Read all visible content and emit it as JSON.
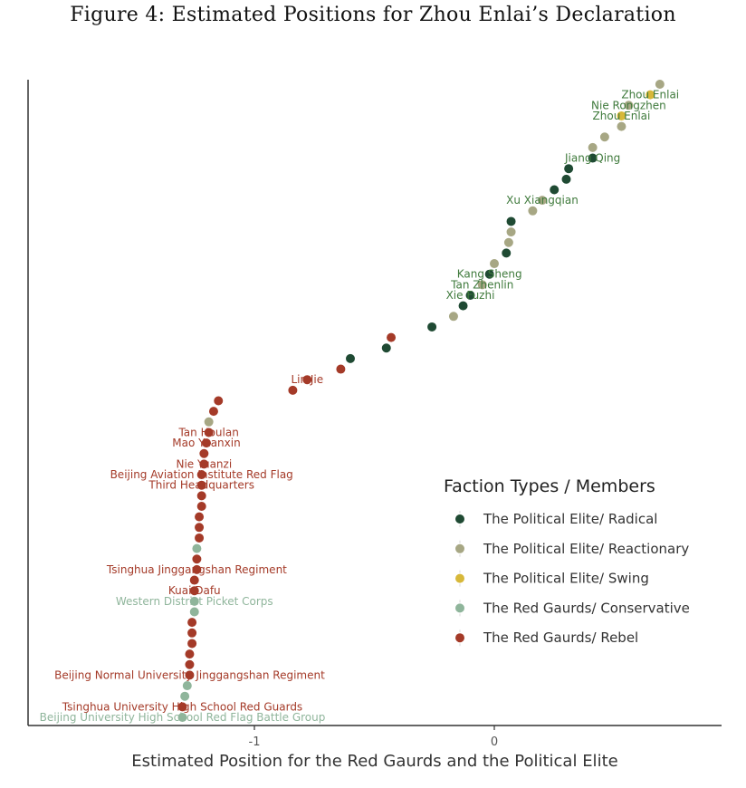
{
  "page_title": "Figure 4: Estimated Positions for Zhou Enlai’s Declaration",
  "chart_data": {
    "type": "scatter",
    "xlabel": "Estimated Position for the Red Gaurds and the Political Elite",
    "xlim": [
      -1.95,
      0.95
    ],
    "x_ticks": [
      -1,
      0
    ],
    "x_tick_labels": [
      "-1",
      "0"
    ],
    "legend": {
      "title": "Faction Types / Members",
      "placement": "right",
      "entries": [
        {
          "key": "elite_radical",
          "label": "The Political Elite/ Radical",
          "color": "#1f4a33"
        },
        {
          "key": "elite_reactionary",
          "label": "The Political Elite/ Reactionary",
          "color": "#a7a784"
        },
        {
          "key": "elite_swing",
          "label": "The Political Elite/ Swing",
          "color": "#d7b83a"
        },
        {
          "key": "rg_conservative",
          "label": "The Red Gaurds/ Conservative",
          "color": "#8fb59b"
        },
        {
          "key": "rg_rebel",
          "label": "The Red Gaurds/ Rebel",
          "color": "#a43a28"
        }
      ]
    },
    "points": [
      {
        "x": 0.69,
        "group": "elite_reactionary"
      },
      {
        "x": 0.65,
        "group": "elite_swing",
        "label": "Zhou Enlai"
      },
      {
        "x": 0.56,
        "group": "elite_reactionary",
        "label": "Nie Rongzhen"
      },
      {
        "x": 0.53,
        "group": "elite_swing",
        "label": "Zhou Enlai"
      },
      {
        "x": 0.53,
        "group": "elite_reactionary"
      },
      {
        "x": 0.46,
        "group": "elite_reactionary"
      },
      {
        "x": 0.41,
        "group": "elite_reactionary"
      },
      {
        "x": 0.41,
        "group": "elite_radical",
        "label": "Jiang Qing"
      },
      {
        "x": 0.31,
        "group": "elite_radical"
      },
      {
        "x": 0.3,
        "group": "elite_radical"
      },
      {
        "x": 0.25,
        "group": "elite_radical"
      },
      {
        "x": 0.2,
        "group": "elite_reactionary",
        "label": "Xu Xiangqian"
      },
      {
        "x": 0.16,
        "group": "elite_reactionary"
      },
      {
        "x": 0.07,
        "group": "elite_radical"
      },
      {
        "x": 0.07,
        "group": "elite_reactionary"
      },
      {
        "x": 0.06,
        "group": "elite_reactionary"
      },
      {
        "x": 0.05,
        "group": "elite_radical"
      },
      {
        "x": 0.0,
        "group": "elite_reactionary"
      },
      {
        "x": -0.02,
        "group": "elite_radical",
        "label": "Kang Sheng"
      },
      {
        "x": -0.05,
        "group": "elite_reactionary",
        "label": "Tan Zhenlin"
      },
      {
        "x": -0.1,
        "group": "elite_radical",
        "label": "Xie Fuzhi"
      },
      {
        "x": -0.13,
        "group": "elite_radical"
      },
      {
        "x": -0.17,
        "group": "elite_reactionary"
      },
      {
        "x": -0.26,
        "group": "elite_radical"
      },
      {
        "x": -0.43,
        "group": "rg_rebel"
      },
      {
        "x": -0.45,
        "group": "elite_radical"
      },
      {
        "x": -0.6,
        "group": "elite_radical"
      },
      {
        "x": -0.64,
        "group": "rg_rebel"
      },
      {
        "x": -0.78,
        "group": "rg_rebel",
        "label": "Lin Jie"
      },
      {
        "x": -0.84,
        "group": "rg_rebel"
      },
      {
        "x": -1.15,
        "group": "rg_rebel"
      },
      {
        "x": -1.17,
        "group": "rg_rebel"
      },
      {
        "x": -1.19,
        "group": "elite_reactionary"
      },
      {
        "x": -1.19,
        "group": "rg_rebel",
        "label": "Tan Houlan"
      },
      {
        "x": -1.2,
        "group": "rg_rebel",
        "label": "Mao Yuanxin"
      },
      {
        "x": -1.21,
        "group": "rg_rebel"
      },
      {
        "x": -1.21,
        "group": "rg_rebel",
        "label": "Nie Yuanzi"
      },
      {
        "x": -1.22,
        "group": "rg_rebel",
        "label": "Beijing Aviation Institute Red Flag"
      },
      {
        "x": -1.22,
        "group": "rg_rebel",
        "label": "Third Headquarters"
      },
      {
        "x": -1.22,
        "group": "rg_rebel"
      },
      {
        "x": -1.22,
        "group": "rg_rebel"
      },
      {
        "x": -1.23,
        "group": "rg_rebel"
      },
      {
        "x": -1.23,
        "group": "rg_rebel"
      },
      {
        "x": -1.23,
        "group": "rg_rebel"
      },
      {
        "x": -1.24,
        "group": "rg_conservative"
      },
      {
        "x": -1.24,
        "group": "rg_rebel"
      },
      {
        "x": -1.24,
        "group": "rg_rebel",
        "label": "Tsinghua Jinggangshan Regiment"
      },
      {
        "x": -1.25,
        "group": "rg_rebel"
      },
      {
        "x": -1.25,
        "group": "rg_rebel",
        "label": "Kuai Dafu"
      },
      {
        "x": -1.25,
        "group": "rg_conservative",
        "label": "Western District Picket Corps"
      },
      {
        "x": -1.25,
        "group": "rg_conservative"
      },
      {
        "x": -1.26,
        "group": "rg_rebel"
      },
      {
        "x": -1.26,
        "group": "rg_rebel"
      },
      {
        "x": -1.26,
        "group": "rg_rebel"
      },
      {
        "x": -1.27,
        "group": "rg_rebel"
      },
      {
        "x": -1.27,
        "group": "rg_rebel"
      },
      {
        "x": -1.27,
        "group": "rg_rebel",
        "label": "Beijing Normal University Jinggangshan Regiment"
      },
      {
        "x": -1.28,
        "group": "rg_conservative"
      },
      {
        "x": -1.29,
        "group": "rg_conservative"
      },
      {
        "x": -1.3,
        "group": "rg_rebel",
        "label": "Tsinghua University High School Red Guards"
      },
      {
        "x": -1.3,
        "group": "rg_conservative",
        "label": "Beijing University High School Red Flag Battle Group"
      }
    ]
  }
}
